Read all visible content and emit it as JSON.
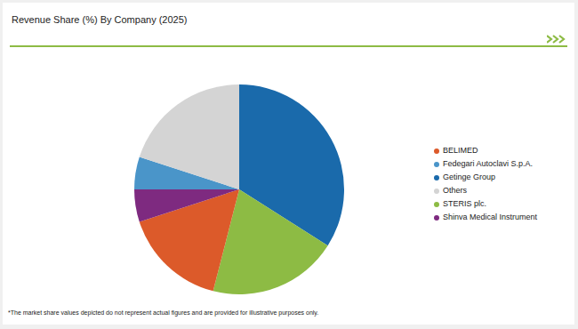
{
  "chart_data": {
    "type": "pie",
    "title": "Revenue Share (%) By Company (2025)",
    "categories": [
      "Getinge Group",
      "STERIS plc.",
      "BELIMED",
      "Shinva Medical Instrument",
      "Fedegari Autoclavi S.p.A.",
      "Others"
    ],
    "values": [
      34,
      20,
      16,
      5,
      5,
      20
    ],
    "colors": [
      "#1a6aab",
      "#8dbb44",
      "#dc5a2a",
      "#7e2a80",
      "#4a95c9",
      "#d4d4d4"
    ],
    "legend": "right",
    "annotation": "*The market share values depicted do not represent actual figures and are provided for illustrative purposes only."
  }
}
